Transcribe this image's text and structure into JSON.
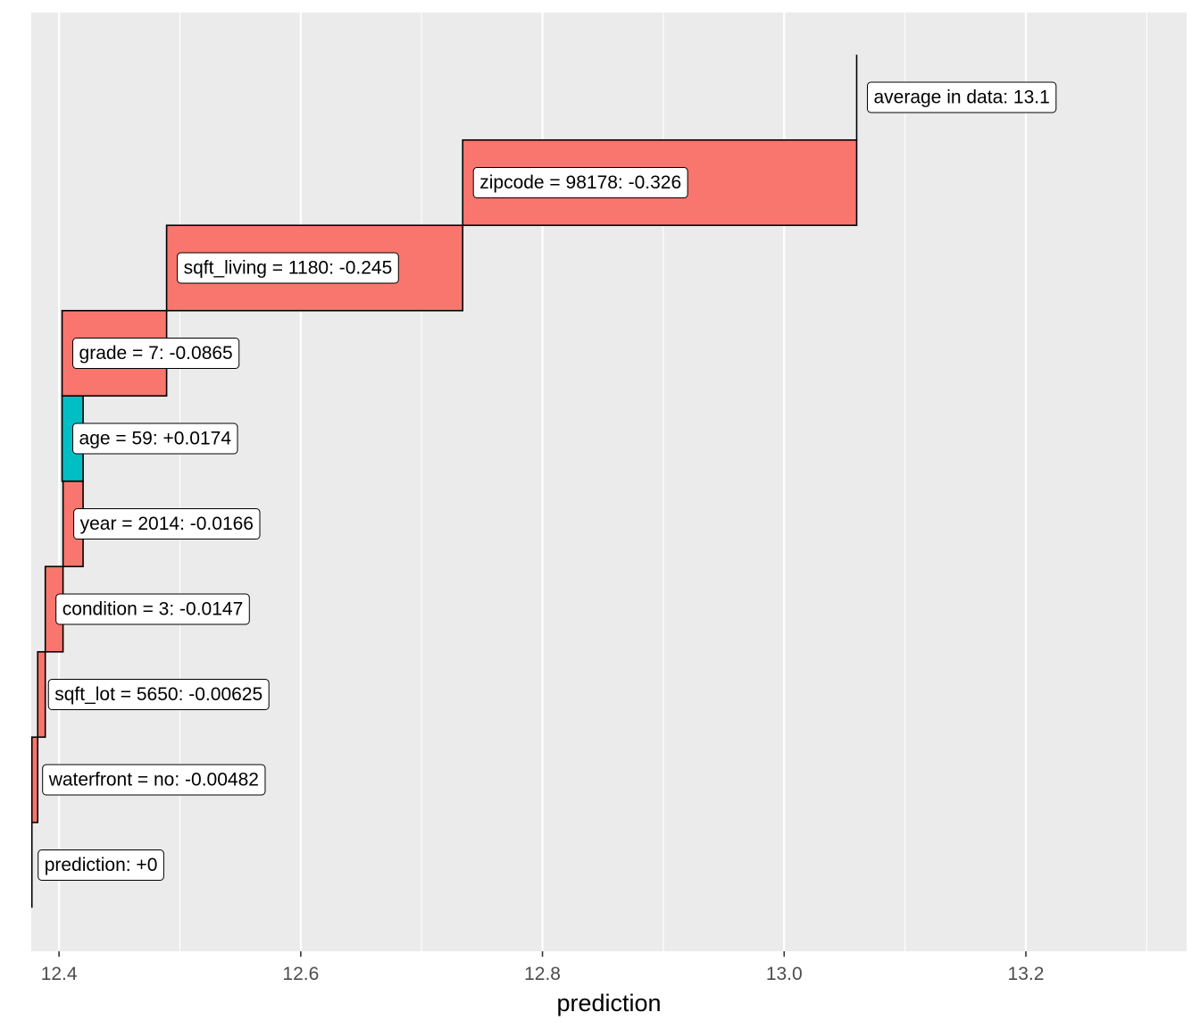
{
  "chart_data": {
    "type": "waterfall",
    "title": "",
    "xlabel": "prediction",
    "ylabel": "",
    "xlim": [
      12.377,
      13.333
    ],
    "x_ticks": [
      12.4,
      12.6,
      12.8,
      13.0,
      13.2
    ],
    "x_tick_labels": [
      "12.4",
      "12.6",
      "12.8",
      "13.0",
      "13.2"
    ],
    "grid": true,
    "colors": {
      "panel": "#ebebeb",
      "grid": "#ffffff",
      "negative": "#f8766d",
      "positive": "#00bfc4",
      "bar_outline": "#000000",
      "axis_text": "#4d4d4d"
    },
    "start": {
      "label": "average in data: 13.1",
      "value": 13.06
    },
    "steps": [
      {
        "label": "zipcode = 98178: -0.326",
        "variable": "zipcode",
        "value_text": "98178",
        "contribution": -0.326,
        "sign": "negative"
      },
      {
        "label": "sqft_living = 1180: -0.245",
        "variable": "sqft_living",
        "value_text": "1180",
        "contribution": -0.245,
        "sign": "negative"
      },
      {
        "label": "grade = 7: -0.0865",
        "variable": "grade",
        "value_text": "7",
        "contribution": -0.0865,
        "sign": "negative"
      },
      {
        "label": "age = 59: +0.0174",
        "variable": "age",
        "value_text": "59",
        "contribution": 0.0174,
        "sign": "positive"
      },
      {
        "label": "year = 2014: -0.0166",
        "variable": "year",
        "value_text": "2014",
        "contribution": -0.0166,
        "sign": "negative"
      },
      {
        "label": "condition = 3: -0.0147",
        "variable": "condition",
        "value_text": "3",
        "contribution": -0.0147,
        "sign": "negative"
      },
      {
        "label": "sqft_lot = 5650: -0.00625",
        "variable": "sqft_lot",
        "value_text": "5650",
        "contribution": -0.00625,
        "sign": "negative"
      },
      {
        "label": "waterfront = no: -0.00482",
        "variable": "waterfront",
        "value_text": "no",
        "contribution": -0.00482,
        "sign": "negative"
      }
    ],
    "end": {
      "label": "prediction: +0"
    }
  }
}
